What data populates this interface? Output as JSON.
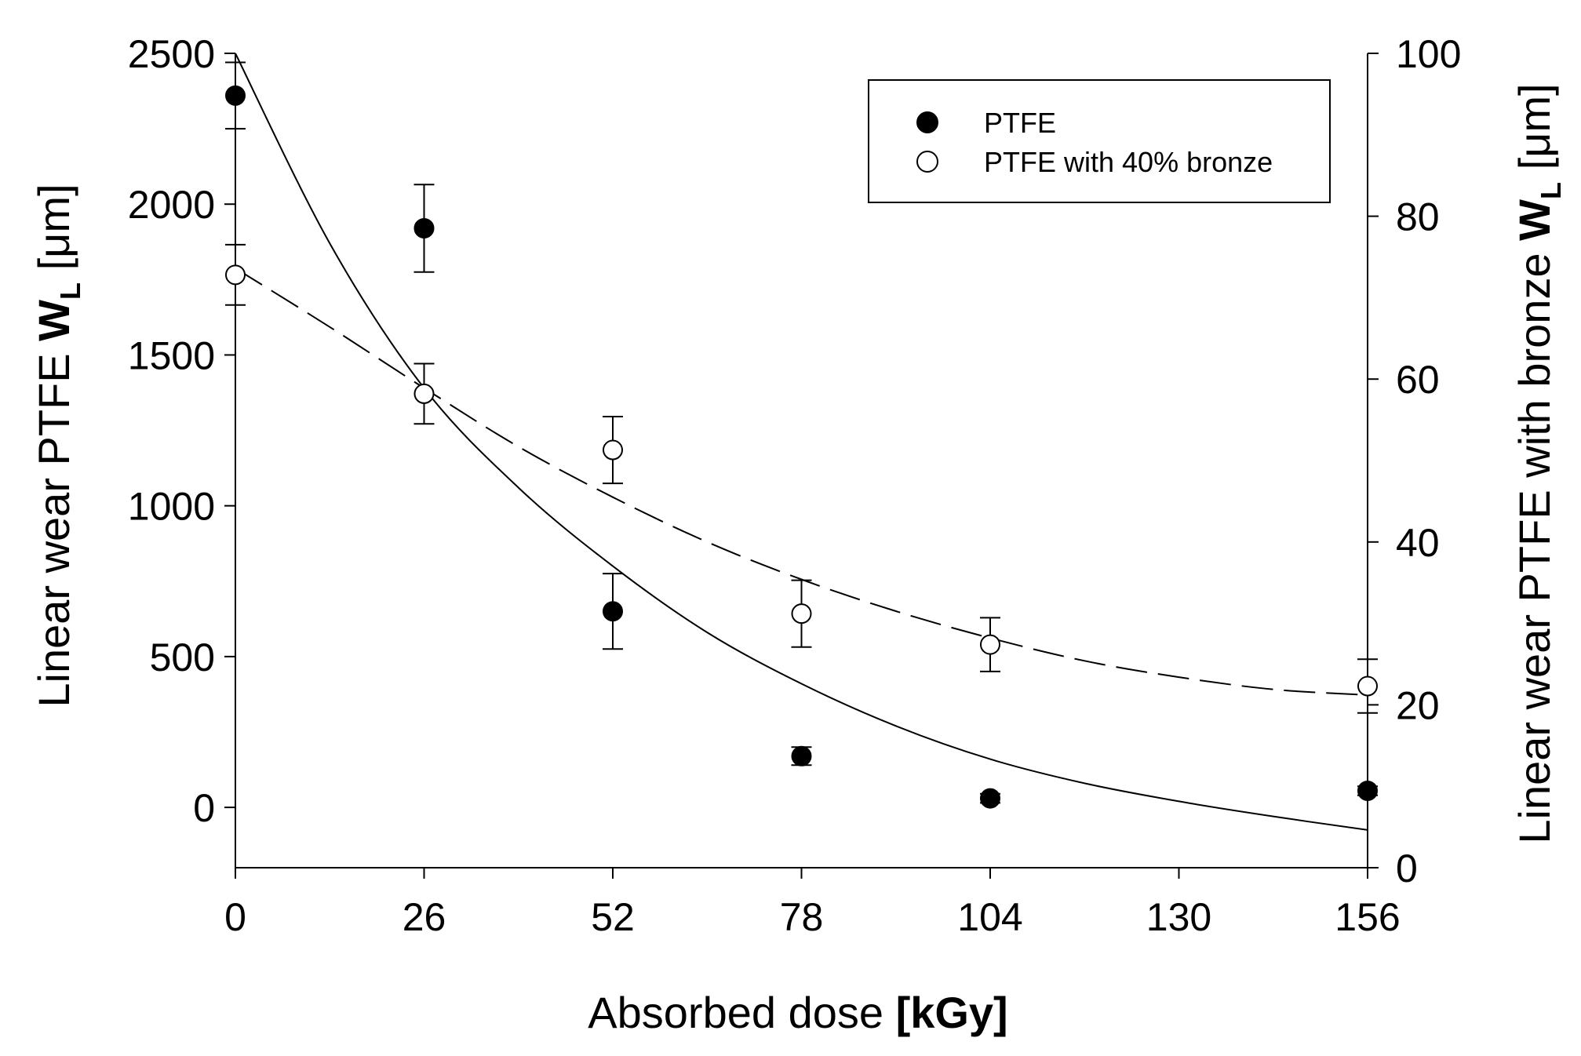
{
  "chart_data": {
    "type": "scatter",
    "title": "",
    "xlabel": "Absorbed dose",
    "xlabel_unit": "[kGy]",
    "ylabel_left": "Linear wear PTFE",
    "ylabel_left_symbol": "W",
    "ylabel_left_sub": "L",
    "ylabel_left_unit": "[μm]",
    "ylabel_right": "Linear wear PTFE with bronze",
    "ylabel_right_symbol": "W",
    "ylabel_right_sub": "L",
    "ylabel_right_unit": "[μm]",
    "xlim": [
      0,
      156
    ],
    "ylim_left": [
      -200,
      2500
    ],
    "ylim_right": [
      0,
      100
    ],
    "x_ticks": [
      0,
      26,
      52,
      78,
      104,
      130,
      156
    ],
    "x_tick_labels": [
      "0",
      "26",
      "52",
      "78",
      "104",
      "130",
      "156"
    ],
    "y_left_ticks": [
      0,
      500,
      1000,
      1500,
      2000,
      2500
    ],
    "y_left_tick_labels": [
      "0",
      "500",
      "1000",
      "1500",
      "2000",
      "2500"
    ],
    "y_right_ticks": [
      0,
      20,
      40,
      60,
      80,
      100
    ],
    "y_right_tick_labels": [
      "0",
      "20",
      "40",
      "60",
      "80",
      "100"
    ],
    "grid": false,
    "legend_position": "top-right",
    "series": [
      {
        "name": "PTFE",
        "marker": "filled-circle",
        "axis": "left",
        "x": [
          0,
          26,
          52,
          78,
          104,
          156
        ],
        "y": [
          2360,
          1920,
          650,
          170,
          30,
          55
        ],
        "err": [
          110,
          145,
          125,
          30,
          15,
          15
        ],
        "fit": {
          "style": "solid",
          "x": [
            0,
            13,
            26,
            39,
            52,
            65,
            78,
            91,
            104,
            117,
            130,
            143,
            156
          ],
          "y": [
            2500,
            1870,
            1390,
            1060,
            800,
            580,
            410,
            270,
            160,
            80,
            20,
            -30,
            -75
          ]
        }
      },
      {
        "name": "PTFE with 40% bronze",
        "marker": "open-circle",
        "axis": "right",
        "x": [
          0,
          26,
          52,
          78,
          104,
          156
        ],
        "y": [
          72.8,
          58.2,
          51.3,
          31.2,
          27.4,
          22.3
        ],
        "err": [
          3.7,
          3.7,
          4.1,
          4.1,
          3.3,
          3.3
        ],
        "fit": {
          "style": "dashed",
          "x": [
            0,
            13,
            26,
            39,
            52,
            65,
            78,
            91,
            104,
            117,
            130,
            143,
            156
          ],
          "y": [
            73.6,
            66.4,
            58.9,
            51.7,
            45.5,
            40.0,
            35.4,
            31.5,
            28.2,
            25.4,
            23.4,
            21.9,
            21.2
          ]
        }
      }
    ]
  }
}
